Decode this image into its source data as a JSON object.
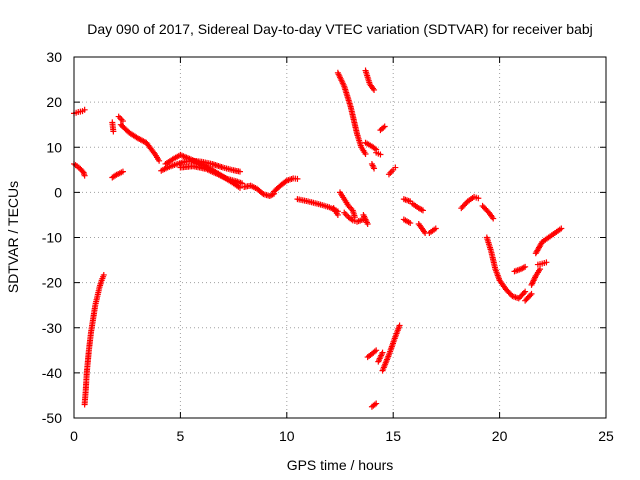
{
  "chart_data": {
    "type": "scatter",
    "title": "Day 090 of 2017, Sidereal Day-to-day VTEC variation (SDTVAR) for receiver babj",
    "xlabel": "GPS time / hours",
    "ylabel": "SDTVAR / TECUs",
    "xlim": [
      0,
      25
    ],
    "ylim": [
      -50,
      30
    ],
    "xticks": [
      0,
      5,
      10,
      15,
      20,
      25
    ],
    "yticks": [
      30,
      20,
      10,
      0,
      -10,
      -20,
      -30,
      -40,
      -50
    ],
    "grid": true,
    "marker": "plus",
    "color": "#ff0000",
    "series": [
      {
        "name": "SDTVAR",
        "segments": [
          {
            "x": [
              0.0,
              0.2,
              0.4,
              0.5
            ],
            "y": [
              17.5,
              17.8,
              18.0,
              18.3
            ]
          },
          {
            "x": [
              0.0,
              0.15,
              0.3,
              0.45,
              0.5
            ],
            "y": [
              6.3,
              5.8,
              5.2,
              4.4,
              3.7
            ]
          },
          {
            "x": [
              0.5,
              0.55,
              0.6,
              0.7,
              0.8,
              0.9,
              1.0,
              1.1,
              1.2,
              1.3,
              1.4
            ],
            "y": [
              -47.0,
              -44.0,
              -40.0,
              -35.0,
              -31.0,
              -28.0,
              -25.0,
              -23.0,
              -21.0,
              -19.5,
              -18.3
            ]
          },
          {
            "x": [
              1.8,
              1.85
            ],
            "y": [
              15.5,
              13.5
            ]
          },
          {
            "x": [
              2.1,
              2.3
            ],
            "y": [
              16.8,
              15.8
            ]
          },
          {
            "x": [
              1.8,
              2.0,
              2.3
            ],
            "y": [
              3.3,
              3.9,
              4.6
            ]
          },
          {
            "x": [
              2.2,
              2.6,
              3.0,
              3.4,
              3.8,
              4.0
            ],
            "y": [
              15.0,
              13.2,
              12.0,
              11.0,
              8.5,
              7.0
            ]
          },
          {
            "x": [
              4.1,
              4.4,
              4.8,
              5.2,
              5.6,
              6.0,
              6.5,
              7.0,
              7.5,
              7.8
            ],
            "y": [
              4.8,
              5.5,
              6.2,
              6.8,
              7.0,
              6.8,
              6.3,
              5.5,
              4.9,
              4.6
            ]
          },
          {
            "x": [
              4.3,
              4.7,
              5.0,
              5.5,
              6.0,
              6.5,
              7.0,
              7.5,
              7.8
            ],
            "y": [
              6.3,
              7.5,
              8.3,
              7.3,
              6.2,
              5.0,
              3.5,
              2.0,
              1.0
            ]
          },
          {
            "x": [
              5.0,
              5.6,
              6.2,
              6.8,
              7.2,
              7.6,
              7.9
            ],
            "y": [
              5.5,
              5.8,
              5.2,
              3.9,
              3.0,
              2.5,
              2.0
            ]
          },
          {
            "x": [
              8.0,
              8.3,
              8.6,
              8.9,
              9.2,
              9.4
            ],
            "y": [
              1.2,
              1.5,
              0.8,
              -0.4,
              -0.8,
              -0.3
            ]
          },
          {
            "x": [
              9.4,
              9.7,
              10.0,
              10.3,
              10.5
            ],
            "y": [
              0.2,
              1.5,
              2.6,
              3.1,
              3.0
            ]
          },
          {
            "x": [
              10.5,
              11.0,
              11.5,
              12.0,
              12.4
            ],
            "y": [
              -1.5,
              -2.0,
              -2.6,
              -3.3,
              -4.2
            ]
          },
          {
            "x": [
              12.2,
              12.4
            ],
            "y": [
              -3.5,
              -5.0
            ]
          },
          {
            "x": [
              12.5,
              12.7,
              12.9,
              13.1,
              13.2
            ],
            "y": [
              0.0,
              -1.5,
              -3.0,
              -4.0,
              -5.5
            ]
          },
          {
            "x": [
              12.7,
              12.9,
              13.1,
              13.3,
              13.6
            ],
            "y": [
              -4.5,
              -5.5,
              -6.2,
              -6.5,
              -6.0
            ]
          },
          {
            "x": [
              13.6,
              13.8
            ],
            "y": [
              -5.0,
              -7.0
            ]
          },
          {
            "x": [
              12.4,
              12.7,
              13.0,
              13.3,
              13.5,
              13.7
            ],
            "y": [
              26.5,
              23.5,
              19.0,
              13.0,
              10.0,
              8.5
            ]
          },
          {
            "x": [
              13.7,
              13.9,
              14.1
            ],
            "y": [
              27.0,
              24.0,
              22.7
            ]
          },
          {
            "x": [
              13.7,
              14.0,
              14.2
            ],
            "y": [
              11.0,
              10.2,
              9.5
            ]
          },
          {
            "x": [
              14.2,
              14.4
            ],
            "y": [
              8.8,
              8.4
            ]
          },
          {
            "x": [
              14.0,
              14.1
            ],
            "y": [
              6.3,
              5.3
            ]
          },
          {
            "x": [
              14.4,
              14.6
            ],
            "y": [
              13.8,
              14.6
            ]
          },
          {
            "x": [
              14.8,
              15.0,
              15.1
            ],
            "y": [
              4.0,
              5.0,
              5.5
            ]
          },
          {
            "x": [
              13.8,
              14.0,
              14.2
            ],
            "y": [
              -36.5,
              -35.8,
              -35.0
            ]
          },
          {
            "x": [
              14.0,
              14.2
            ],
            "y": [
              -47.5,
              -46.8
            ]
          },
          {
            "x": [
              14.3,
              14.5
            ],
            "y": [
              -37.5,
              -35.5
            ]
          },
          {
            "x": [
              14.5,
              14.8,
              15.1,
              15.3
            ],
            "y": [
              -39.5,
              -36.0,
              -32.0,
              -29.5
            ]
          },
          {
            "x": [
              15.5,
              15.8
            ],
            "y": [
              -1.5,
              -2.0
            ]
          },
          {
            "x": [
              15.5,
              15.8
            ],
            "y": [
              -6.0,
              -6.8
            ]
          },
          {
            "x": [
              15.9,
              16.2,
              16.4
            ],
            "y": [
              -2.5,
              -3.5,
              -4.0
            ]
          },
          {
            "x": [
              16.2,
              16.5
            ],
            "y": [
              -7.0,
              -9.0
            ]
          },
          {
            "x": [
              16.7,
              17.0
            ],
            "y": [
              -9.0,
              -8.0
            ]
          },
          {
            "x": [
              18.2,
              18.5,
              18.8,
              19.0
            ],
            "y": [
              -3.5,
              -2.0,
              -1.0,
              -1.3
            ]
          },
          {
            "x": [
              19.2,
              19.5,
              19.7
            ],
            "y": [
              -3.0,
              -4.5,
              -5.8
            ]
          },
          {
            "x": [
              19.4,
              19.6,
              19.8,
              20.0,
              20.3,
              20.6,
              20.9,
              21.2
            ],
            "y": [
              -10.0,
              -13.0,
              -17.0,
              -19.5,
              -21.5,
              -23.0,
              -23.5,
              -22.0
            ]
          },
          {
            "x": [
              20.7,
              21.0,
              21.2
            ],
            "y": [
              -17.5,
              -17.0,
              -16.5
            ]
          },
          {
            "x": [
              21.2,
              21.5
            ],
            "y": [
              -24.0,
              -22.5
            ]
          },
          {
            "x": [
              21.5,
              21.7,
              21.9
            ],
            "y": [
              -20.5,
              -18.5,
              -17.0
            ]
          },
          {
            "x": [
              21.8,
              22.0,
              22.2
            ],
            "y": [
              -16.0,
              -15.8,
              -15.5
            ]
          },
          {
            "x": [
              21.7,
              22.0,
              22.3,
              22.6,
              22.9
            ],
            "y": [
              -13.5,
              -11.0,
              -10.0,
              -9.0,
              -8.0
            ]
          }
        ]
      }
    ]
  }
}
